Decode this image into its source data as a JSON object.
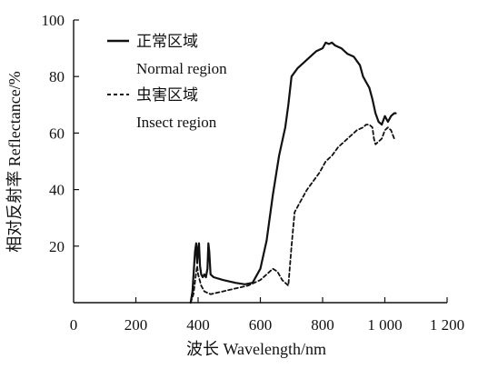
{
  "chart_data": {
    "type": "line",
    "xlabel": "波长 Wavelength/nm",
    "ylabel": "相对反射率 Reflectance/%",
    "xlim": [
      0,
      1200
    ],
    "ylim": [
      0,
      100
    ],
    "x_ticks": [
      0,
      200,
      400,
      600,
      800,
      1000,
      1200
    ],
    "x_tick_labels": [
      "0",
      "200",
      "400",
      "600",
      "800",
      "1 000",
      "1 200"
    ],
    "y_ticks": [
      20,
      40,
      60,
      80,
      100
    ],
    "y_tick_labels": [
      "20",
      "40",
      "60",
      "80",
      "100"
    ],
    "grid": false,
    "legend_position": "top-left",
    "series": [
      {
        "name": "正常区域",
        "name_en": "Normal region",
        "style": "solid",
        "color": "#111111",
        "x": [
          376,
          382,
          390,
          394,
          397,
          400,
          403,
          406,
          410,
          415,
          420,
          425,
          430,
          433,
          436,
          440,
          450,
          480,
          520,
          550,
          575,
          600,
          620,
          640,
          660,
          680,
          690,
          700,
          720,
          740,
          760,
          780,
          800,
          810,
          820,
          830,
          840,
          860,
          880,
          900,
          920,
          930,
          940,
          950,
          960,
          970,
          980,
          990,
          1000,
          1010,
          1020,
          1030,
          1035
        ],
        "y": [
          0,
          4,
          18,
          21,
          14,
          19,
          21,
          13,
          10,
          9,
          10,
          9,
          12,
          21,
          18,
          10,
          9,
          8,
          7,
          6.5,
          7,
          12,
          22,
          38,
          52,
          62,
          70,
          80,
          83,
          85,
          87,
          89,
          90,
          92,
          91.5,
          92,
          91,
          90,
          88,
          87,
          84,
          80,
          78,
          76,
          72,
          67,
          64,
          63,
          66,
          64,
          66,
          67,
          67
        ]
      },
      {
        "name": "虫害区域",
        "name_en": "Insect region",
        "style": "dashed",
        "color": "#111111",
        "x": [
          376,
          385,
          393,
          397,
          400,
          405,
          410,
          420,
          440,
          480,
          520,
          560,
          600,
          620,
          640,
          655,
          670,
          690,
          700,
          710,
          730,
          750,
          770,
          790,
          810,
          830,
          850,
          870,
          890,
          910,
          930,
          940,
          950,
          960,
          965,
          970,
          980,
          990,
          1000,
          1010,
          1020,
          1030
        ],
        "y": [
          0,
          3,
          10,
          13,
          10,
          8,
          6,
          4,
          3,
          4,
          5,
          6,
          8,
          10,
          12,
          11,
          8,
          6,
          20,
          32,
          36,
          40,
          43,
          46,
          50,
          52,
          55,
          57,
          59,
          61,
          62,
          63,
          63,
          62,
          58,
          56,
          57,
          58,
          61,
          62,
          61,
          58
        ]
      }
    ]
  }
}
